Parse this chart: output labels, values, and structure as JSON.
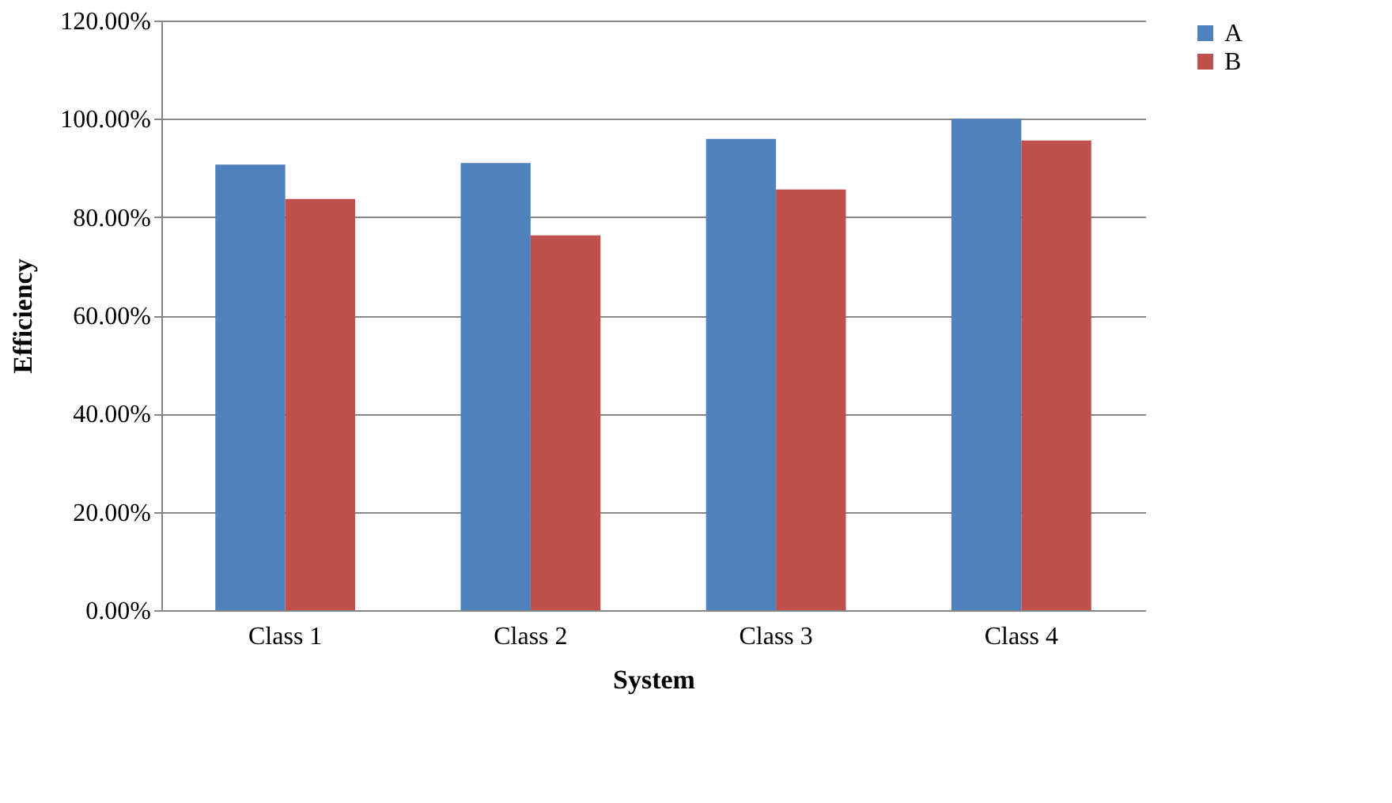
{
  "chart_data": {
    "type": "bar",
    "xlabel": "System",
    "ylabel": "Efficiency",
    "categories": [
      "Class 1",
      "Class 2",
      "Class 3",
      "Class 4"
    ],
    "series": [
      {
        "name": "A",
        "color": "#4f81bd",
        "values": [
          90.7,
          91.0,
          95.9,
          100.0
        ]
      },
      {
        "name": "B",
        "color": "#c0504d",
        "values": [
          83.7,
          76.3,
          85.6,
          95.6
        ]
      }
    ],
    "ylim": [
      0,
      120
    ],
    "yticks": [
      {
        "value": 0,
        "label": "0.00%"
      },
      {
        "value": 20,
        "label": "20.00%"
      },
      {
        "value": 40,
        "label": "40.00%"
      },
      {
        "value": 60,
        "label": "60.00%"
      },
      {
        "value": 80,
        "label": "80.00%"
      },
      {
        "value": 100,
        "label": "100.00%"
      },
      {
        "value": 120,
        "label": "120.00%"
      }
    ],
    "grid": "y",
    "legend": "right"
  }
}
